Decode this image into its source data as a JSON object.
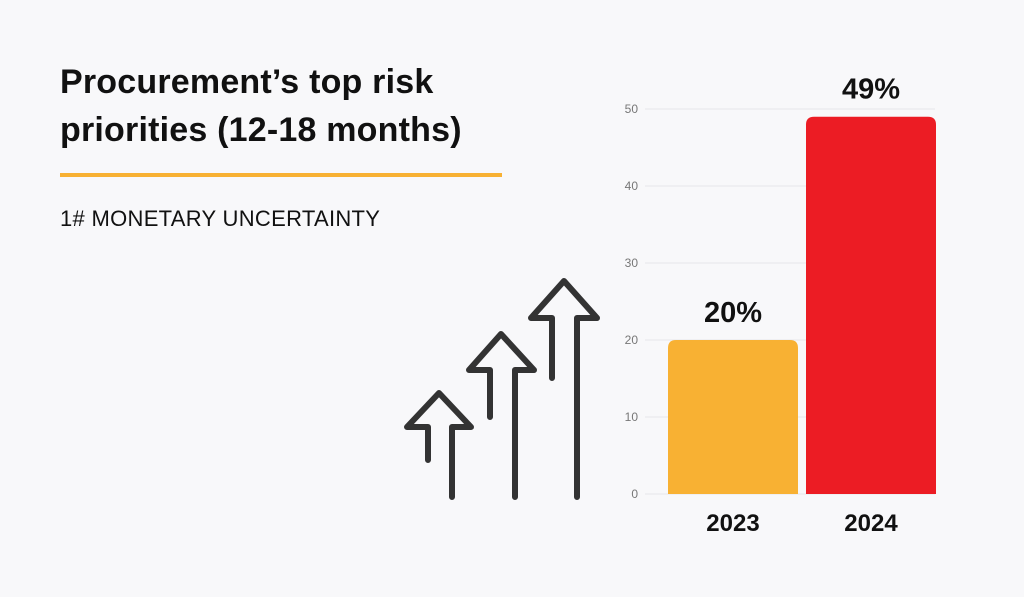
{
  "headline": {
    "line1": "Procurement’s top risk",
    "line2": "priorities (12-18 months)"
  },
  "subheading": "1# MONETARY UNCERTAINTY",
  "colors": {
    "accent_rule": "#f8b133",
    "bar_2023": "#f8b133",
    "bar_2024": "#ec1c24",
    "arrows": "#333333"
  },
  "icons": {
    "growth": "three-rising-arrows-icon"
  },
  "chart_data": {
    "type": "bar",
    "categories": [
      "2023",
      "2024"
    ],
    "values": [
      20,
      49
    ],
    "value_labels": [
      "20%",
      "49%"
    ],
    "ylim": [
      0,
      50
    ],
    "yticks": [
      0,
      10,
      20,
      30,
      40,
      50
    ],
    "grid": true,
    "title": "",
    "xlabel": "",
    "ylabel": ""
  }
}
